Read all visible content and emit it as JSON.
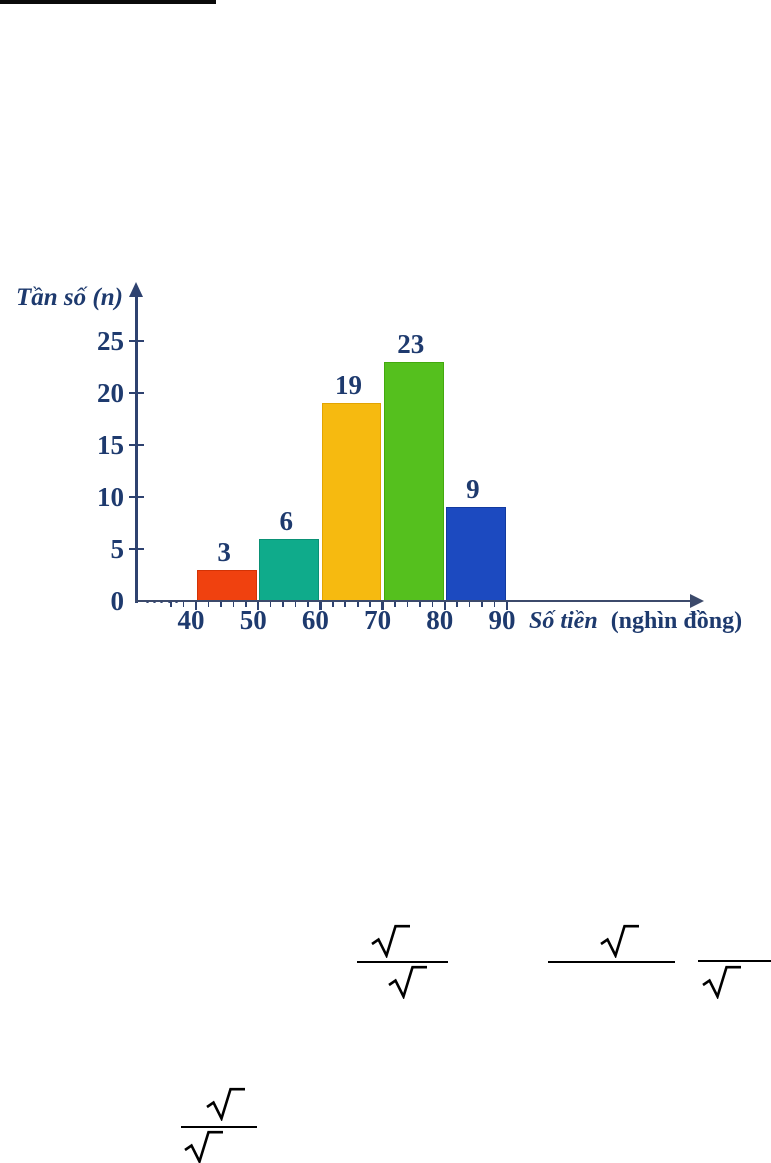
{
  "top_rule": {
    "present": true,
    "color": "#0a0a0a"
  },
  "chart_data": {
    "type": "bar",
    "chart_kind": "histogram",
    "title": "",
    "ylabel": "Tần số (n)",
    "xlabel": "Số tiền (nghìn đồng)",
    "xlabel_main": "Số tiền",
    "xlabel_unit": "(nghìn đồng)",
    "categories": [
      "40–50",
      "50–60",
      "60–70",
      "70–80",
      "80–90"
    ],
    "bins": [
      [
        40,
        50
      ],
      [
        50,
        60
      ],
      [
        60,
        70
      ],
      [
        70,
        80
      ],
      [
        80,
        90
      ]
    ],
    "values": [
      3,
      6,
      19,
      23,
      9
    ],
    "bar_value_labels": [
      "3",
      "6",
      "19",
      "23",
      "9"
    ],
    "x_ticks": [
      40,
      50,
      60,
      70,
      80,
      90
    ],
    "y_ticks": [
      0,
      5,
      10,
      15,
      20,
      25
    ],
    "xlim": [
      36,
      120
    ],
    "ylim": [
      0,
      27
    ],
    "grid": false,
    "legend": false,
    "axis_break_before_first_bin": true,
    "bar_colors": [
      "#f0410f",
      "#0fab8b",
      "#f6ba10",
      "#55c01e",
      "#1c4ac0"
    ],
    "bar_border_colors": [
      "#d33305",
      "#0a9175",
      "#e2a402",
      "#43a90e",
      "#123a9e"
    ],
    "label_color": "#1e3a6e",
    "axis_color": "#2e4270"
  },
  "math": {
    "radical_glyph": "√",
    "expressions": [
      {
        "position": "upper-left",
        "form": "fraction",
        "numerator_radical": true,
        "denominator_radical": true
      },
      {
        "position": "upper-middle",
        "form": "fraction",
        "numerator_radical": true,
        "denominator_radical": false
      },
      {
        "position": "upper-right",
        "form": "fraction",
        "numerator_radical": false,
        "denominator_radical": true
      },
      {
        "position": "lower-left",
        "form": "fraction",
        "numerator_radical": true,
        "denominator_radical": true
      }
    ]
  }
}
